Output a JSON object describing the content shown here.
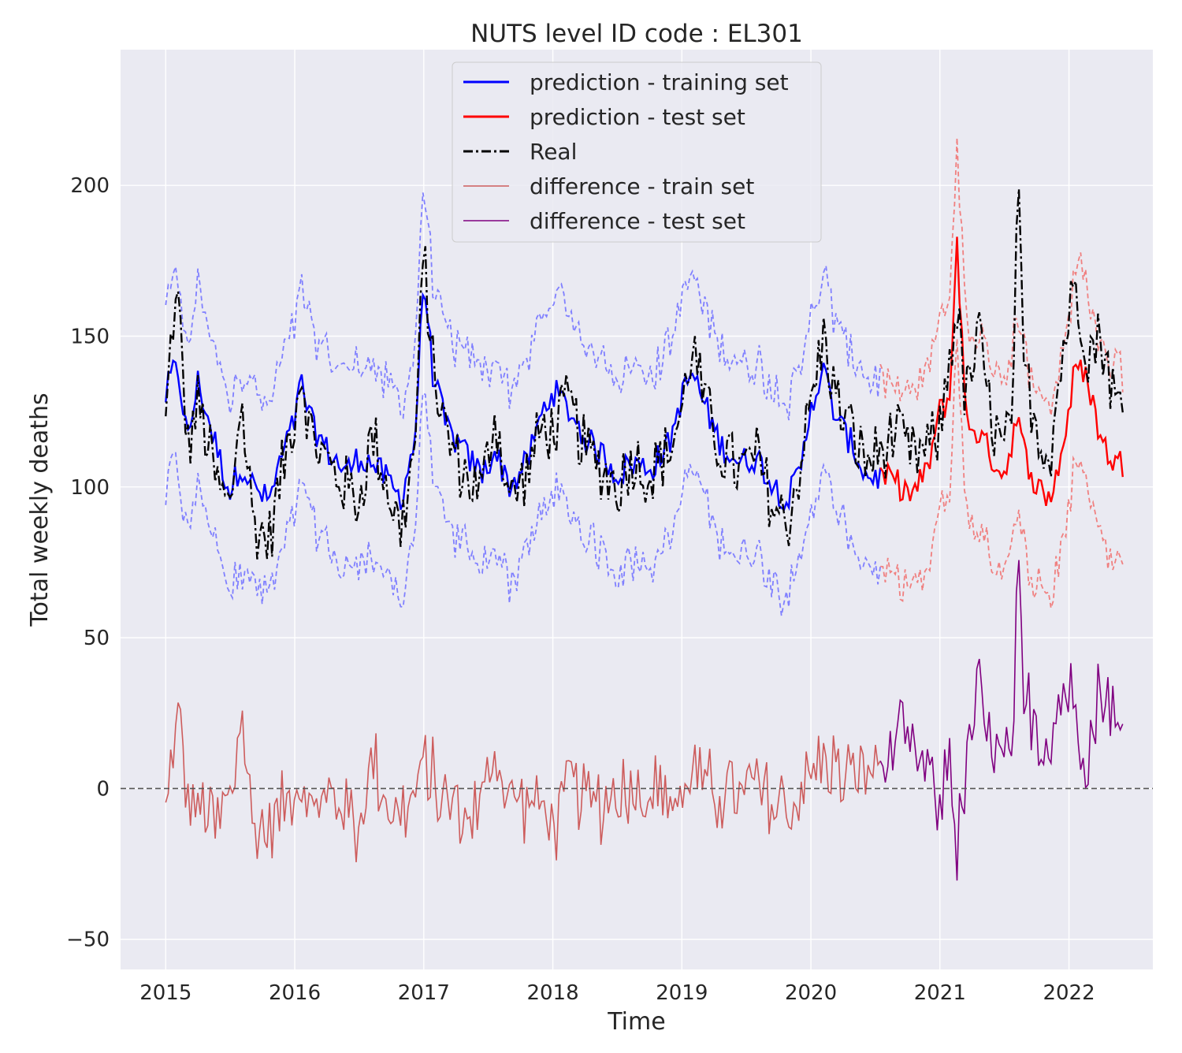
{
  "chart_data": {
    "type": "line",
    "title": "NUTS level ID code : EL301",
    "xlabel": "Time",
    "ylabel": "Total weekly deaths",
    "xlim": [
      2014.65,
      2022.65
    ],
    "ylim": [
      -60,
      245
    ],
    "x_ticks": [
      2015,
      2016,
      2017,
      2018,
      2019,
      2020,
      2021,
      2022
    ],
    "x_tick_labels": [
      "2015",
      "2016",
      "2017",
      "2018",
      "2019",
      "2020",
      "2021",
      "2022"
    ],
    "y_ticks": [
      -50,
      0,
      50,
      100,
      150,
      200
    ],
    "y_tick_labels": [
      "−50",
      "0",
      "50",
      "100",
      "150",
      "200"
    ],
    "grid": true,
    "background": "#eaeaf2",
    "legend_position": "top-center",
    "reference_line": {
      "y": 0,
      "style": "dashed",
      "color": "#555555"
    },
    "colors": {
      "train_pred": "#0000ff",
      "test_pred": "#ff0000",
      "real": "#000000",
      "train_band": "#8080ff",
      "test_band": "#f08080",
      "diff_train": "#cd5c5c",
      "diff_test": "#800080"
    },
    "legend": [
      {
        "label": "prediction - training set",
        "color": "#0000ff",
        "style": "solid",
        "width": 3
      },
      {
        "label": "prediction - test set",
        "color": "#ff0000",
        "style": "solid",
        "width": 3
      },
      {
        "label": "Real",
        "color": "#000000",
        "style": "dashdot",
        "width": 3
      },
      {
        "label": "difference - train set",
        "color": "#cd5c5c",
        "style": "solid",
        "width": 1.5
      },
      {
        "label": "difference - test set",
        "color": "#800080",
        "style": "solid",
        "width": 1.5
      }
    ],
    "weekly_series": {
      "start_year": 2015.0,
      "split_year": 2020.55,
      "end_year": 2022.42,
      "step_weeks": 1,
      "real_keypoints": [
        [
          2015.0,
          120
        ],
        [
          2015.05,
          155
        ],
        [
          2015.1,
          160
        ],
        [
          2015.17,
          112
        ],
        [
          2015.25,
          128
        ],
        [
          2015.4,
          100
        ],
        [
          2015.5,
          92
        ],
        [
          2015.58,
          130
        ],
        [
          2015.68,
          88
        ],
        [
          2015.8,
          82
        ],
        [
          2015.9,
          105
        ],
        [
          2016.0,
          125
        ],
        [
          2016.05,
          140
        ],
        [
          2016.12,
          118
        ],
        [
          2016.25,
          108
        ],
        [
          2016.4,
          100
        ],
        [
          2016.5,
          95
        ],
        [
          2016.6,
          118
        ],
        [
          2016.72,
          100
        ],
        [
          2016.82,
          85
        ],
        [
          2016.93,
          112
        ],
        [
          2017.0,
          178
        ],
        [
          2017.07,
          140
        ],
        [
          2017.17,
          118
        ],
        [
          2017.3,
          105
        ],
        [
          2017.45,
          98
        ],
        [
          2017.55,
          125
        ],
        [
          2017.67,
          95
        ],
        [
          2017.8,
          105
        ],
        [
          2017.92,
          120
        ],
        [
          2018.0,
          118
        ],
        [
          2018.12,
          128
        ],
        [
          2018.25,
          112
        ],
        [
          2018.4,
          105
        ],
        [
          2018.5,
          100
        ],
        [
          2018.62,
          110
        ],
        [
          2018.75,
          104
        ],
        [
          2018.9,
          112
        ],
        [
          2019.0,
          125
        ],
        [
          2019.08,
          148
        ],
        [
          2019.17,
          128
        ],
        [
          2019.3,
          112
        ],
        [
          2019.45,
          105
        ],
        [
          2019.58,
          110
        ],
        [
          2019.72,
          92
        ],
        [
          2019.82,
          88
        ],
        [
          2019.92,
          108
        ],
        [
          2020.0,
          128
        ],
        [
          2020.1,
          150
        ],
        [
          2020.2,
          128
        ],
        [
          2020.32,
          118
        ],
        [
          2020.42,
          108
        ],
        [
          2020.55,
          112
        ],
        [
          2020.65,
          118
        ],
        [
          2020.78,
          110
        ],
        [
          2020.9,
          112
        ],
        [
          2021.0,
          118
        ],
        [
          2021.08,
          145
        ],
        [
          2021.13,
          160
        ],
        [
          2021.2,
          128
        ],
        [
          2021.3,
          150
        ],
        [
          2021.4,
          122
        ],
        [
          2021.5,
          110
        ],
        [
          2021.58,
          135
        ],
        [
          2021.6,
          205
        ],
        [
          2021.65,
          140
        ],
        [
          2021.75,
          120
        ],
        [
          2021.85,
          110
        ],
        [
          2021.95,
          145
        ],
        [
          2022.05,
          168
        ],
        [
          2022.15,
          145
        ],
        [
          2022.25,
          150
        ],
        [
          2022.35,
          130
        ],
        [
          2022.42,
          124
        ]
      ],
      "pred_keypoints": [
        [
          2015.0,
          130
        ],
        [
          2015.05,
          138
        ],
        [
          2015.1,
          138
        ],
        [
          2015.17,
          115
        ],
        [
          2015.25,
          135
        ],
        [
          2015.4,
          112
        ],
        [
          2015.5,
          98
        ],
        [
          2015.58,
          108
        ],
        [
          2015.68,
          100
        ],
        [
          2015.8,
          95
        ],
        [
          2015.9,
          110
        ],
        [
          2016.0,
          122
        ],
        [
          2016.05,
          135
        ],
        [
          2016.12,
          122
        ],
        [
          2016.25,
          112
        ],
        [
          2016.4,
          105
        ],
        [
          2016.5,
          110
        ],
        [
          2016.6,
          108
        ],
        [
          2016.72,
          102
        ],
        [
          2016.82,
          96
        ],
        [
          2016.93,
          115
        ],
        [
          2017.0,
          170
        ],
        [
          2017.07,
          138
        ],
        [
          2017.17,
          120
        ],
        [
          2017.3,
          112
        ],
        [
          2017.45,
          104
        ],
        [
          2017.55,
          112
        ],
        [
          2017.67,
          100
        ],
        [
          2017.8,
          108
        ],
        [
          2017.92,
          125
        ],
        [
          2018.0,
          132
        ],
        [
          2018.12,
          126
        ],
        [
          2018.25,
          116
        ],
        [
          2018.4,
          110
        ],
        [
          2018.5,
          104
        ],
        [
          2018.62,
          108
        ],
        [
          2018.75,
          106
        ],
        [
          2018.9,
          114
        ],
        [
          2019.0,
          130
        ],
        [
          2019.08,
          138
        ],
        [
          2019.17,
          128
        ],
        [
          2019.3,
          114
        ],
        [
          2019.45,
          108
        ],
        [
          2019.58,
          110
        ],
        [
          2019.72,
          100
        ],
        [
          2019.82,
          96
        ],
        [
          2019.92,
          105
        ],
        [
          2020.0,
          128
        ],
        [
          2020.1,
          138
        ],
        [
          2020.2,
          122
        ],
        [
          2020.32,
          114
        ],
        [
          2020.42,
          104
        ],
        [
          2020.55,
          103
        ],
        [
          2020.65,
          102
        ],
        [
          2020.78,
          97
        ],
        [
          2020.9,
          105
        ],
        [
          2021.0,
          125
        ],
        [
          2021.08,
          130
        ],
        [
          2021.13,
          185
        ],
        [
          2021.2,
          122
        ],
        [
          2021.3,
          118
        ],
        [
          2021.4,
          110
        ],
        [
          2021.5,
          104
        ],
        [
          2021.58,
          120
        ],
        [
          2021.6,
          122
        ],
        [
          2021.65,
          112
        ],
        [
          2021.75,
          100
        ],
        [
          2021.85,
          96
        ],
        [
          2021.95,
          112
        ],
        [
          2022.05,
          140
        ],
        [
          2022.15,
          135
        ],
        [
          2022.25,
          115
        ],
        [
          2022.35,
          108
        ],
        [
          2022.42,
          108
        ]
      ],
      "band_halfwidth": 32
    }
  }
}
